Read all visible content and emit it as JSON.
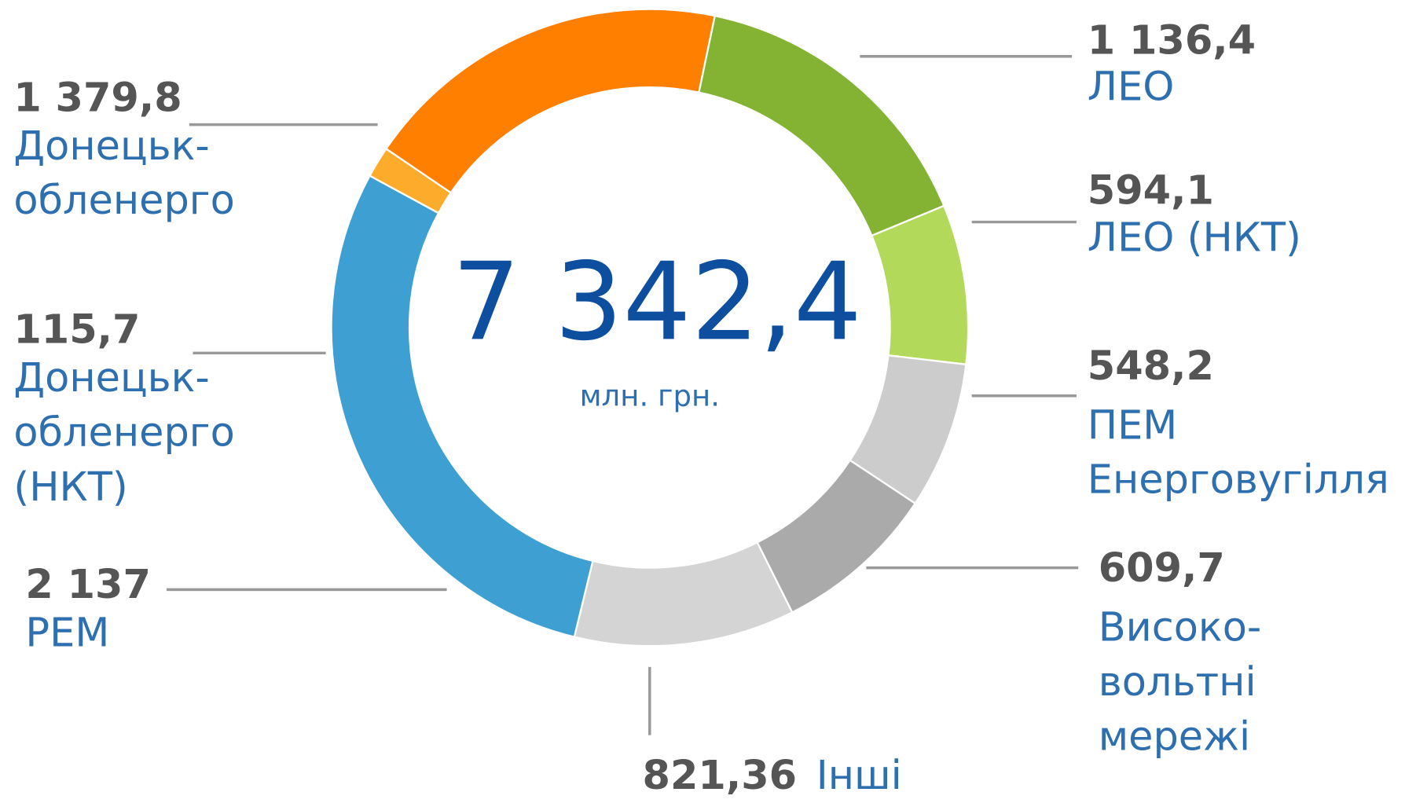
{
  "chart_data": {
    "type": "donut",
    "center_label": "7 342,4",
    "center_sublabel": "млн. грн.",
    "categories": [
      [
        "ЛЕО"
      ],
      [
        "ЛЕО (НКТ)"
      ],
      [
        "ПЕМ",
        "Енерговугілля"
      ],
      [
        "Високо-",
        "вольтні",
        "мережі"
      ],
      [
        "Інші"
      ],
      [
        "РЕМ"
      ],
      [
        "Донецьк-",
        "обленерго",
        "(НКТ)"
      ],
      [
        "Донецьк-",
        "обленерго"
      ]
    ],
    "values": [
      1136.4,
      594.1,
      548.2,
      609.7,
      821.36,
      2137,
      115.7,
      1379.8
    ],
    "value_labels": [
      "1 136,4",
      "594,1",
      "548,2",
      "609,7",
      "821,36",
      "2 137",
      "115,7",
      "1 379,8"
    ],
    "colors": [
      "#84b233",
      "#b3d95b",
      "#cccccc",
      "#aaaaaa",
      "#d4d4d4",
      "#3ea0d2",
      "#fdab2b",
      "#ff7f00"
    ]
  }
}
